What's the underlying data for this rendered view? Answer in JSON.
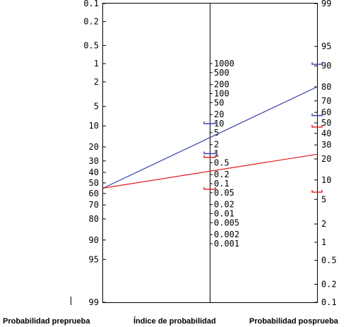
{
  "chart_data": {
    "type": "nomogram",
    "title": "",
    "axes": [
      {
        "name": "Probabilidad preprueba",
        "unit": "%",
        "ticks": [
          "0.1",
          "0.2",
          "0.5",
          "1",
          "2",
          "5",
          "10",
          "20",
          "30",
          "40",
          "50",
          "60",
          "70",
          "80",
          "90",
          "95",
          "99"
        ]
      },
      {
        "name": "Índice de probabilidad",
        "unit": "",
        "ticks": [
          "1000",
          "500",
          "200",
          "100",
          "50",
          "20",
          "10",
          "5",
          "2",
          "1",
          "0.5",
          "0.2",
          "0.1",
          "0.05",
          "0.02",
          "0.01",
          "0.005",
          "0.002",
          "0.001"
        ]
      },
      {
        "name": "Probabilidad posprueba",
        "unit": "%",
        "ticks": [
          "99",
          "95",
          "90",
          "80",
          "70",
          "60",
          "50",
          "40",
          "30",
          "20",
          "10",
          "5",
          "2",
          "1",
          "0.5",
          "0.2",
          "0.1"
        ]
      }
    ],
    "series": [
      {
        "color": "#3a46b0",
        "pretest": 55,
        "likelihood_ratio": 3.5,
        "posttest": 80,
        "markers": {
          "lr": [
            10,
            1
          ],
          "posttest": [
            90.5,
            57
          ]
        }
      },
      {
        "color": "#e0191e",
        "pretest": 55,
        "likelihood_ratio": 0.3,
        "posttest": 23,
        "markers": {
          "lr": [
            0.75,
            0.065
          ],
          "posttest": [
            46,
            6.5
          ]
        }
      }
    ]
  }
}
